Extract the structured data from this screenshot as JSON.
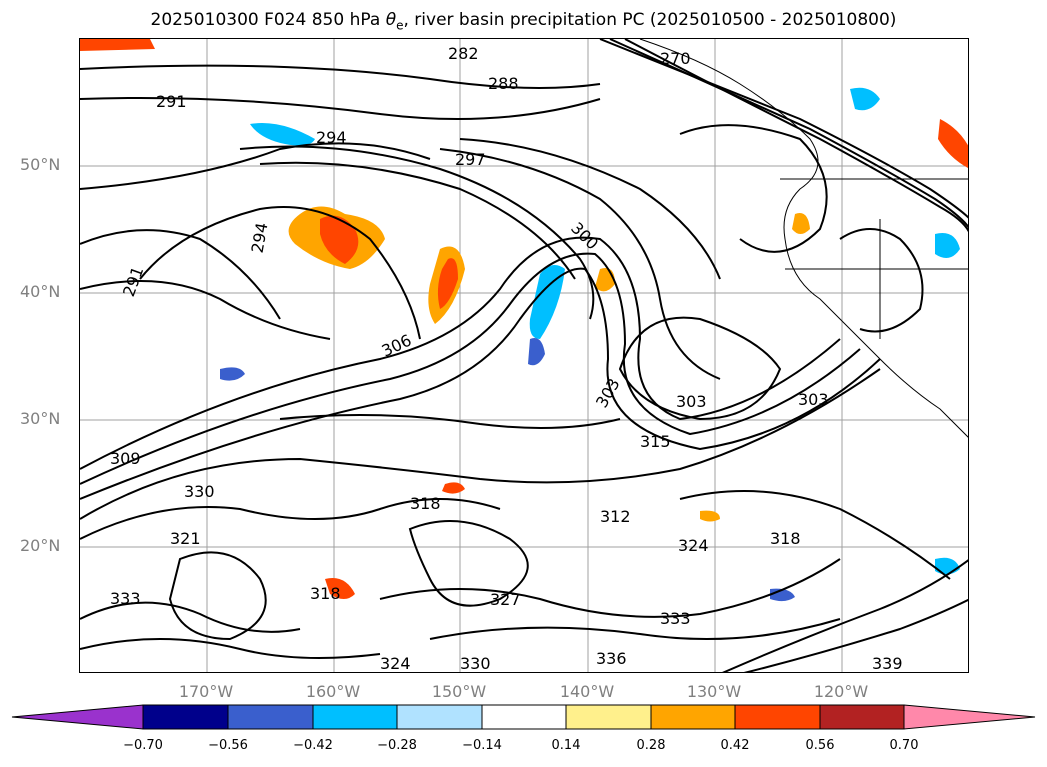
{
  "title_main": "2025010300 F024 850 hPa ",
  "title_theta": "θ",
  "title_sub": "e",
  "title_rest": ", river basin precipitation PC (2025010500 - 2025010800)",
  "map": {
    "lat_ticks": [
      "50°N",
      "40°N",
      "30°N",
      "20°N"
    ],
    "lon_ticks": [
      "170°W",
      "160°W",
      "150°W",
      "140°W",
      "130°W",
      "120°W"
    ],
    "contour_labels": [
      "282",
      "288",
      "291",
      "294",
      "297",
      "300",
      "303",
      "306",
      "309",
      "312",
      "315",
      "318",
      "321",
      "324",
      "327",
      "330",
      "333",
      "336",
      "339",
      "270"
    ],
    "contour_color": "#000000",
    "grid_color": "#a0a0a0"
  },
  "colorbar": {
    "tick_labels": [
      "−0.70",
      "−0.56",
      "−0.42",
      "−0.28",
      "−0.14",
      "0.14",
      "0.28",
      "0.42",
      "0.56",
      "0.70"
    ],
    "colors": [
      "#9a32cd",
      "#00008b",
      "#3a5fcd",
      "#00bfff",
      "#b0e2ff",
      "#ffffff",
      "#fff08c",
      "#ffa500",
      "#ff4500",
      "#b22222",
      "#ff88aa"
    ]
  }
}
